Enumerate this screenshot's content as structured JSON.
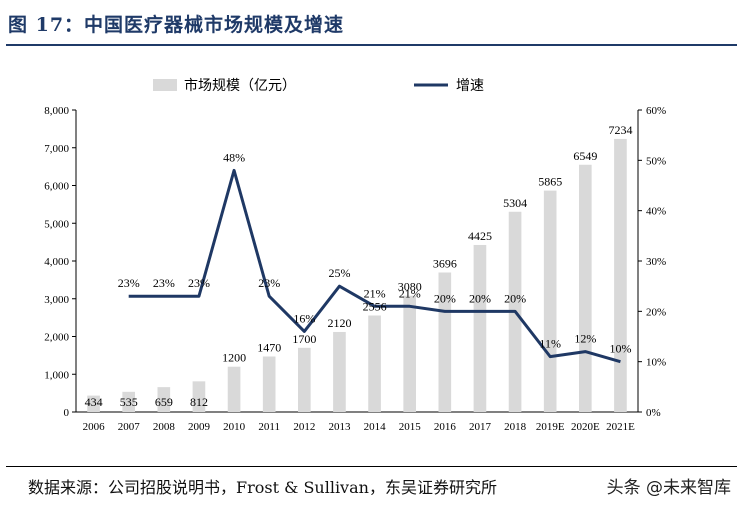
{
  "figure": {
    "title": "图 17：中国医疗器械市场规模及增速",
    "source": "数据来源：公司招股说明书，Frost & Sullivan，东吴证券研究所",
    "watermark": "头条 @未来智库"
  },
  "colors": {
    "bar": "#d9d9d9",
    "line": "#1f3864",
    "title": "#1f3a68"
  },
  "chart_data": {
    "type": "bar",
    "categories": [
      "2006",
      "2007",
      "2008",
      "2009",
      "2010",
      "2011",
      "2012",
      "2013",
      "2014",
      "2015",
      "2016",
      "2017",
      "2018",
      "2019E",
      "2020E",
      "2021E"
    ],
    "series": [
      {
        "name": "市场规模（亿元）",
        "type": "bar",
        "axis": "left",
        "values": [
          434,
          535,
          659,
          812,
          1200,
          1470,
          1700,
          2120,
          2556,
          3080,
          3696,
          4425,
          5304,
          5865,
          6549,
          7234
        ],
        "labels": [
          "434",
          "535",
          "659",
          "812",
          "1200",
          "1470",
          "1700",
          "2120",
          "2556",
          "3080",
          "3696",
          "4425",
          "5304",
          "5865",
          "6549",
          "7234"
        ]
      },
      {
        "name": "增速",
        "type": "line",
        "axis": "right",
        "values": [
          null,
          23,
          23,
          23,
          48,
          23,
          16,
          25,
          21,
          21,
          20,
          20,
          20,
          11,
          12,
          10
        ],
        "labels": [
          "",
          "23%",
          "23%",
          "23%",
          "48%",
          "23%",
          "16%",
          "25%",
          "21%",
          "21%",
          "20%",
          "20%",
          "20%",
          "11%",
          "12%",
          "10%"
        ]
      }
    ],
    "ylim_left": [
      0,
      8000
    ],
    "ylim_right": [
      0,
      60
    ],
    "y_left_ticks": [
      "0",
      "1,000",
      "2,000",
      "3,000",
      "4,000",
      "5,000",
      "6,000",
      "7,000",
      "8,000"
    ],
    "y_right_ticks": [
      "0%",
      "10%",
      "20%",
      "30%",
      "40%",
      "50%",
      "60%"
    ],
    "legend_position": "top",
    "grid": false
  }
}
